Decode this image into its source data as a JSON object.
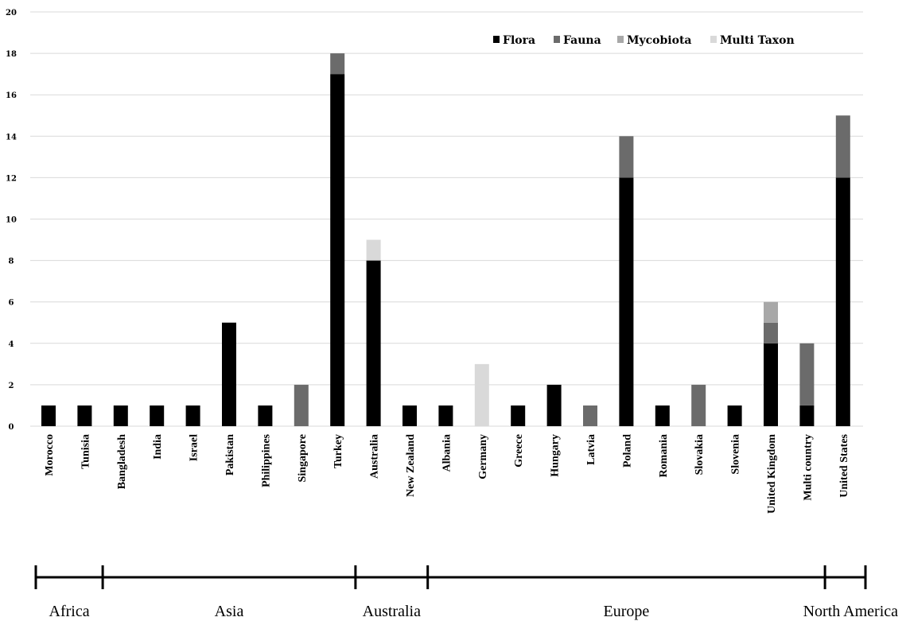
{
  "chart_data": {
    "type": "bar",
    "stacked": true,
    "title": "",
    "xlabel": "",
    "ylabel": "",
    "ylim": [
      0,
      20
    ],
    "ytick_step": 2,
    "grid": true,
    "legend_position": "top-right",
    "categories": [
      "Morocco",
      "Tunisia",
      "Bangladesh",
      "India",
      "Israel",
      "Pakistan",
      "Philippines",
      "Singapore",
      "Turkey",
      "Australia",
      "New Zealand",
      "Albania",
      "Germany",
      "Greece",
      "Hungary",
      "Latvia",
      "Poland",
      "Romania",
      "Slovakia",
      "Slovenia",
      "United Kingdom",
      "Multi country",
      "United States"
    ],
    "series": [
      {
        "name": "Flora",
        "color": "#000000",
        "values": [
          1,
          1,
          1,
          1,
          1,
          5,
          1,
          0,
          17,
          8,
          1,
          1,
          0,
          1,
          2,
          0,
          12,
          1,
          0,
          1,
          4,
          1,
          12
        ]
      },
      {
        "name": "Fauna",
        "color": "#6b6b6b",
        "values": [
          0,
          0,
          0,
          0,
          0,
          0,
          0,
          2,
          1,
          0,
          0,
          0,
          0,
          0,
          0,
          1,
          2,
          0,
          2,
          0,
          1,
          3,
          3
        ]
      },
      {
        "name": "Mycobiota",
        "color": "#a8a8a8",
        "values": [
          0,
          0,
          0,
          0,
          0,
          0,
          0,
          0,
          0,
          0,
          0,
          0,
          0,
          0,
          0,
          0,
          0,
          0,
          0,
          0,
          1,
          0,
          0
        ]
      },
      {
        "name": "Multi Taxon",
        "color": "#d9d9d9",
        "values": [
          0,
          0,
          0,
          0,
          0,
          0,
          0,
          0,
          0,
          1,
          0,
          0,
          3,
          0,
          0,
          0,
          0,
          0,
          0,
          0,
          0,
          0,
          0
        ]
      }
    ],
    "regions": [
      {
        "name": "Africa",
        "from": 0,
        "to": 1
      },
      {
        "name": "Asia",
        "from": 2,
        "to": 8
      },
      {
        "name": "Australia",
        "from": 9,
        "to": 10
      },
      {
        "name": "Europe",
        "from": 11,
        "to": 21
      },
      {
        "name": "North America",
        "from": 22,
        "to": 22
      }
    ]
  }
}
